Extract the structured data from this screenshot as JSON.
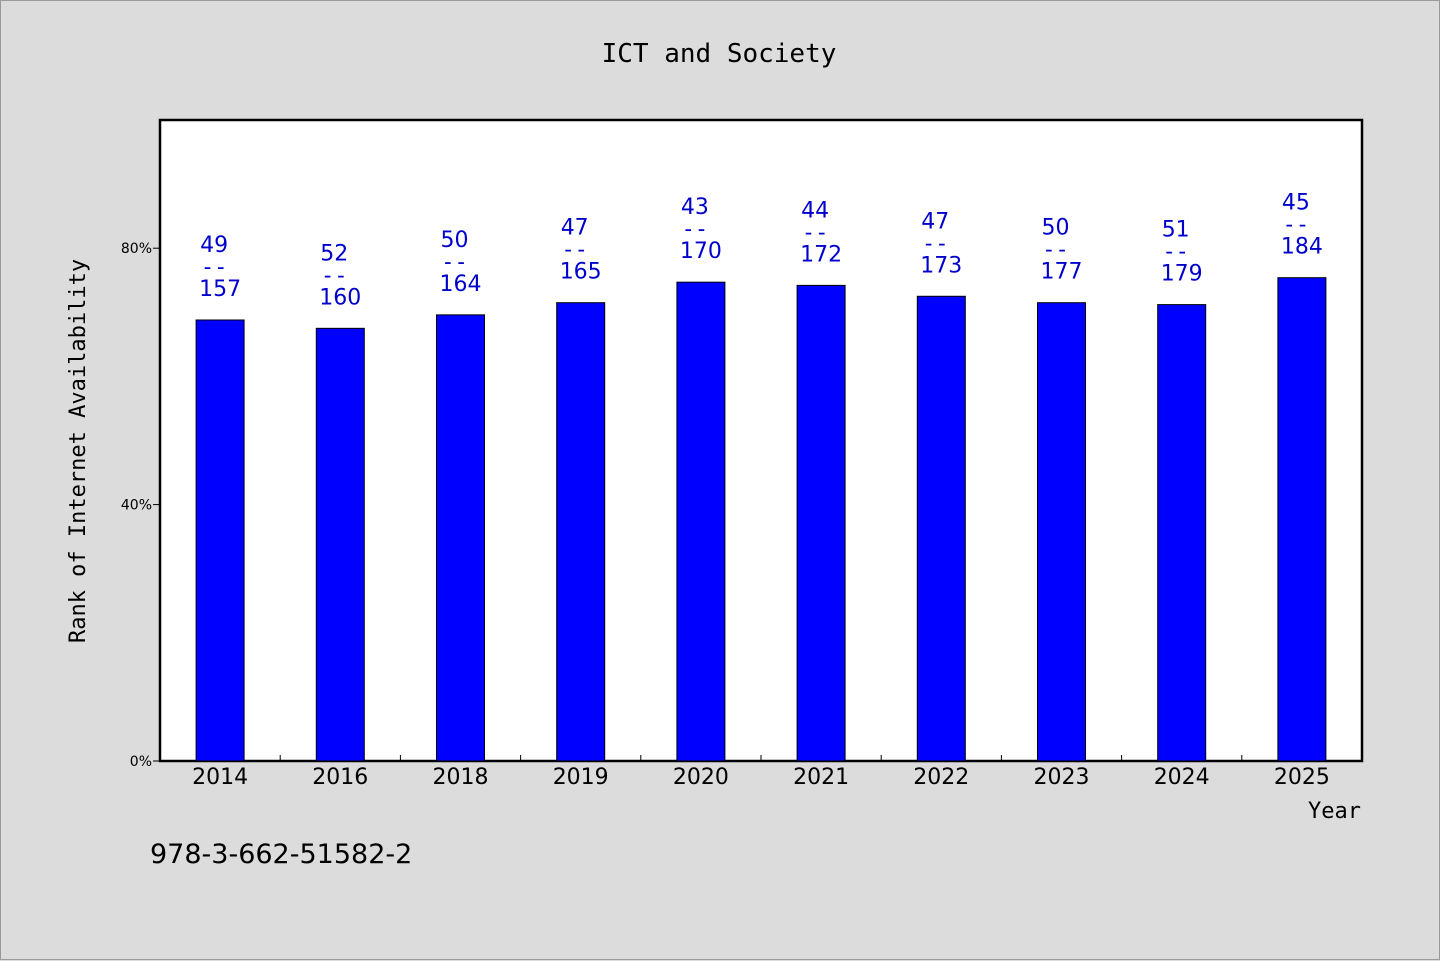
{
  "chart_data": {
    "type": "bar",
    "title": "ICT and Society",
    "xlabel": "Year",
    "ylabel": "Rank of Internet Availability",
    "categories": [
      "2014",
      "2016",
      "2018",
      "2019",
      "2020",
      "2021",
      "2022",
      "2023",
      "2024",
      "2025"
    ],
    "series": [
      {
        "values": [
          68.8,
          67.5,
          69.6,
          71.5,
          74.7,
          74.2,
          72.5,
          71.5,
          71.2,
          75.4
        ]
      }
    ],
    "labels_top": [
      "49",
      "52",
      "50",
      "47",
      "43",
      "44",
      "47",
      "50",
      "51",
      "45"
    ],
    "labels_sep": [
      "--",
      "--",
      "--",
      "--",
      "--",
      "--",
      "--",
      "--",
      "--",
      "--"
    ],
    "labels_bottom": [
      "157",
      "160",
      "164",
      "165",
      "170",
      "172",
      "173",
      "177",
      "179",
      "184"
    ],
    "yticks": [
      0,
      40,
      80
    ],
    "ytick_labels": [
      "0%",
      "40%",
      "80%"
    ],
    "ylim": [
      0,
      100
    ],
    "grid": false,
    "legend": "none",
    "colors": {
      "bar": "#0000ff",
      "label": "#0000cc",
      "plot_bg": "#ffffff",
      "page_bg": "#dcdcdc",
      "axis": "#000000"
    }
  },
  "footer": {
    "isbn": "978-3-662-51582-2"
  }
}
